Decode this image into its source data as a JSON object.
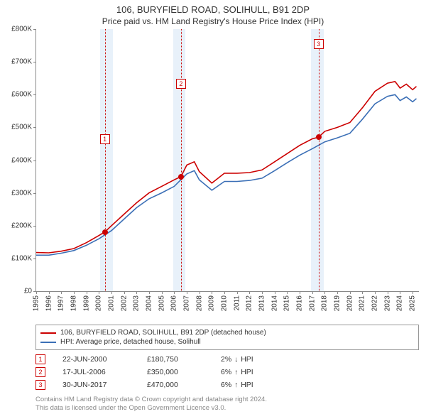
{
  "title": "106, BURYFIELD ROAD, SOLIHULL, B91 2DP",
  "subtitle": "Price paid vs. HM Land Registry's House Price Index (HPI)",
  "chart": {
    "type": "line",
    "background_color": "#ffffff",
    "xlim": [
      1995,
      2025.5
    ],
    "ylim": [
      0,
      800000
    ],
    "ytick_step": 100000,
    "ylabels": [
      "£0",
      "£100K",
      "£200K",
      "£300K",
      "£400K",
      "£500K",
      "£600K",
      "£700K",
      "£800K"
    ],
    "xlabels": [
      "1995",
      "1996",
      "1997",
      "1998",
      "1999",
      "2000",
      "2001",
      "2002",
      "2003",
      "2004",
      "2005",
      "2006",
      "2007",
      "2008",
      "2009",
      "2010",
      "2011",
      "2012",
      "2013",
      "2014",
      "2015",
      "2016",
      "2017",
      "2018",
      "2019",
      "2020",
      "2021",
      "2022",
      "2023",
      "2024",
      "2025"
    ],
    "shaded_ranges": [
      {
        "from": 2000.1,
        "to": 2001.1,
        "color": "#e6f0fa"
      },
      {
        "from": 2005.9,
        "to": 2006.9,
        "color": "#e6f0fa"
      },
      {
        "from": 2016.9,
        "to": 2017.9,
        "color": "#e6f0fa"
      }
    ],
    "subject_color": "#cc0000",
    "hpi_color": "#3b6fb6",
    "line_width": 1.6,
    "subject_series": [
      [
        1995,
        118000
      ],
      [
        1996,
        117000
      ],
      [
        1997,
        122000
      ],
      [
        1998,
        130000
      ],
      [
        1999,
        148000
      ],
      [
        2000,
        170000
      ],
      [
        2000.47,
        180750
      ],
      [
        2001,
        200000
      ],
      [
        2002,
        235000
      ],
      [
        2003,
        270000
      ],
      [
        2004,
        300000
      ],
      [
        2005,
        320000
      ],
      [
        2006,
        340000
      ],
      [
        2006.54,
        350000
      ],
      [
        2007,
        385000
      ],
      [
        2007.6,
        395000
      ],
      [
        2008,
        365000
      ],
      [
        2009,
        330000
      ],
      [
        2010,
        360000
      ],
      [
        2011,
        360000
      ],
      [
        2012,
        362000
      ],
      [
        2013,
        370000
      ],
      [
        2014,
        395000
      ],
      [
        2015,
        420000
      ],
      [
        2016,
        445000
      ],
      [
        2017,
        465000
      ],
      [
        2017.5,
        470000
      ],
      [
        2018,
        488000
      ],
      [
        2019,
        500000
      ],
      [
        2020,
        515000
      ],
      [
        2021,
        560000
      ],
      [
        2022,
        610000
      ],
      [
        2023,
        635000
      ],
      [
        2023.6,
        640000
      ],
      [
        2024,
        620000
      ],
      [
        2024.5,
        632000
      ],
      [
        2025,
        615000
      ],
      [
        2025.3,
        625000
      ]
    ],
    "hpi_series": [
      [
        1995,
        110000
      ],
      [
        1996,
        110000
      ],
      [
        1997,
        116000
      ],
      [
        1998,
        124000
      ],
      [
        1999,
        140000
      ],
      [
        2000,
        160000
      ],
      [
        2001,
        185000
      ],
      [
        2002,
        220000
      ],
      [
        2003,
        255000
      ],
      [
        2004,
        282000
      ],
      [
        2005,
        300000
      ],
      [
        2006,
        320000
      ],
      [
        2007,
        358000
      ],
      [
        2007.6,
        368000
      ],
      [
        2008,
        340000
      ],
      [
        2009,
        308000
      ],
      [
        2010,
        335000
      ],
      [
        2011,
        335000
      ],
      [
        2012,
        338000
      ],
      [
        2013,
        345000
      ],
      [
        2014,
        368000
      ],
      [
        2015,
        392000
      ],
      [
        2016,
        415000
      ],
      [
        2017,
        435000
      ],
      [
        2018,
        456000
      ],
      [
        2019,
        468000
      ],
      [
        2020,
        482000
      ],
      [
        2021,
        525000
      ],
      [
        2022,
        572000
      ],
      [
        2023,
        595000
      ],
      [
        2023.6,
        600000
      ],
      [
        2024,
        582000
      ],
      [
        2024.5,
        593000
      ],
      [
        2025,
        578000
      ],
      [
        2025.3,
        588000
      ]
    ],
    "markers": [
      {
        "n": "1",
        "x": 2000.47,
        "y": 180750,
        "color": "#cc0000",
        "label_y_offset": -138
      },
      {
        "n": "2",
        "x": 2006.54,
        "y": 350000,
        "color": "#cc0000",
        "label_y_offset": -138
      },
      {
        "n": "3",
        "x": 2017.5,
        "y": 470000,
        "color": "#cc0000",
        "label_y_offset": -138
      }
    ]
  },
  "legend": [
    {
      "color": "#cc0000",
      "label": "106, BURYFIELD ROAD, SOLIHULL, B91 2DP (detached house)"
    },
    {
      "color": "#3b6fb6",
      "label": "HPI: Average price, detached house, Solihull"
    }
  ],
  "events": [
    {
      "n": "1",
      "color": "#cc0000",
      "date": "22-JUN-2000",
      "price": "£180,750",
      "hpi_pct": "2%",
      "hpi_dir": "down",
      "hpi_label": "HPI"
    },
    {
      "n": "2",
      "color": "#cc0000",
      "date": "17-JUL-2006",
      "price": "£350,000",
      "hpi_pct": "6%",
      "hpi_dir": "up",
      "hpi_label": "HPI"
    },
    {
      "n": "3",
      "color": "#cc0000",
      "date": "30-JUN-2017",
      "price": "£470,000",
      "hpi_pct": "6%",
      "hpi_dir": "up",
      "hpi_label": "HPI"
    }
  ],
  "footer_line1": "Contains HM Land Registry data © Crown copyright and database right 2024.",
  "footer_line2": "This data is licensed under the Open Government Licence v3.0."
}
